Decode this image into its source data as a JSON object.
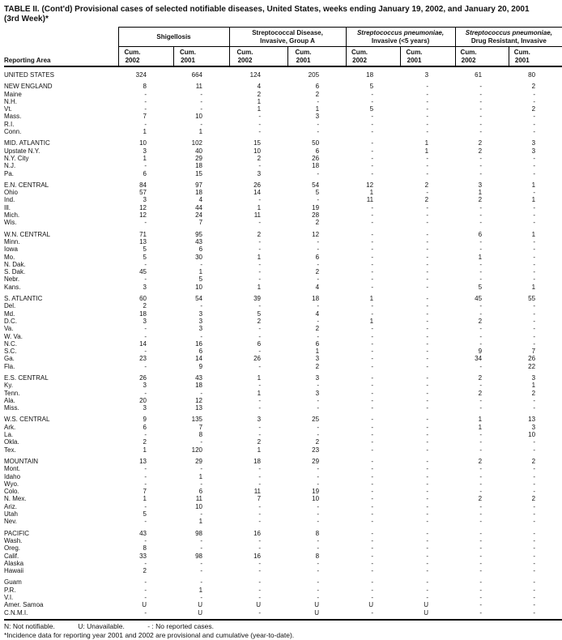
{
  "title": {
    "line1": "TABLE II. (Cont'd) Provisional cases of selected notifiable diseases, United States, weeks ending January 19, 2002, and January 20, 2001",
    "line2": "(3rd Week)*"
  },
  "table": {
    "reporting_area_label": "Reporting Area",
    "groups": [
      {
        "line1": "",
        "line2": "Shigellosis"
      },
      {
        "line1": "Streptococcal Disease,",
        "line2": "Invasive, Group A"
      },
      {
        "line1": "Streptococcus pneumoniae,",
        "line2": "Invasive (<5 years)"
      },
      {
        "line1": "Streptococcus pneumoniae,",
        "line2": "Drug Resistant, Invasive"
      }
    ],
    "subcolumns": [
      {
        "label": "Cum.",
        "year": "2002"
      },
      {
        "label": "Cum.",
        "year": "2001"
      },
      {
        "label": "Cum.",
        "year": "2002"
      },
      {
        "label": "Cum.",
        "year": "2001"
      },
      {
        "label": "Cum.",
        "year": "2002"
      },
      {
        "label": "Cum.",
        "year": "2001"
      },
      {
        "label": "Cum.",
        "year": "2002"
      },
      {
        "label": "Cum.",
        "year": "2001"
      }
    ],
    "sections": [
      {
        "rows": [
          {
            "area": "UNITED STATES",
            "values": [
              "324",
              "664",
              "124",
              "205",
              "18",
              "3",
              "61",
              "80"
            ]
          }
        ]
      },
      {
        "rows": [
          {
            "area": "NEW ENGLAND",
            "values": [
              "8",
              "11",
              "4",
              "6",
              "5",
              "-",
              "-",
              "2"
            ]
          },
          {
            "area": "Maine",
            "values": [
              "-",
              "-",
              "2",
              "2",
              "-",
              "-",
              "-",
              "-"
            ]
          },
          {
            "area": "N.H.",
            "values": [
              "-",
              "-",
              "1",
              "-",
              "-",
              "-",
              "-",
              "-"
            ]
          },
          {
            "area": "Vt.",
            "values": [
              "-",
              "-",
              "1",
              "1",
              "5",
              "-",
              "-",
              "2"
            ]
          },
          {
            "area": "Mass.",
            "values": [
              "7",
              "10",
              "-",
              "3",
              "-",
              "-",
              "-",
              "-"
            ]
          },
          {
            "area": "R.I.",
            "values": [
              "-",
              "-",
              "-",
              "-",
              "-",
              "-",
              "-",
              "-"
            ]
          },
          {
            "area": "Conn.",
            "values": [
              "1",
              "1",
              "-",
              "-",
              "-",
              "-",
              "-",
              "-"
            ]
          }
        ]
      },
      {
        "rows": [
          {
            "area": "MID. ATLANTIC",
            "values": [
              "10",
              "102",
              "15",
              "50",
              "-",
              "1",
              "2",
              "3"
            ]
          },
          {
            "area": "Upstate N.Y.",
            "values": [
              "3",
              "40",
              "10",
              "6",
              "-",
              "1",
              "2",
              "3"
            ]
          },
          {
            "area": "N.Y. City",
            "values": [
              "1",
              "29",
              "2",
              "26",
              "-",
              "-",
              "-",
              "-"
            ]
          },
          {
            "area": "N.J.",
            "values": [
              "-",
              "18",
              "-",
              "18",
              "-",
              "-",
              "-",
              "-"
            ]
          },
          {
            "area": "Pa.",
            "values": [
              "6",
              "15",
              "3",
              "-",
              "-",
              "-",
              "-",
              "-"
            ]
          }
        ]
      },
      {
        "rows": [
          {
            "area": "E.N. CENTRAL",
            "values": [
              "84",
              "97",
              "26",
              "54",
              "12",
              "2",
              "3",
              "1"
            ]
          },
          {
            "area": "Ohio",
            "values": [
              "57",
              "18",
              "14",
              "5",
              "1",
              "-",
              "1",
              "-"
            ]
          },
          {
            "area": "Ind.",
            "values": [
              "3",
              "4",
              "-",
              "-",
              "11",
              "2",
              "2",
              "1"
            ]
          },
          {
            "area": "Ill.",
            "values": [
              "12",
              "44",
              "1",
              "19",
              "-",
              "-",
              "-",
              "-"
            ]
          },
          {
            "area": "Mich.",
            "values": [
              "12",
              "24",
              "11",
              "28",
              "-",
              "-",
              "-",
              "-"
            ]
          },
          {
            "area": "Wis.",
            "values": [
              "-",
              "7",
              "-",
              "2",
              "-",
              "-",
              "-",
              "-"
            ]
          }
        ]
      },
      {
        "rows": [
          {
            "area": "W.N. CENTRAL",
            "values": [
              "71",
              "95",
              "2",
              "12",
              "-",
              "-",
              "6",
              "1"
            ]
          },
          {
            "area": "Minn.",
            "values": [
              "13",
              "43",
              "-",
              "-",
              "-",
              "-",
              "-",
              "-"
            ]
          },
          {
            "area": "Iowa",
            "values": [
              "5",
              "6",
              "-",
              "-",
              "-",
              "-",
              "-",
              "-"
            ]
          },
          {
            "area": "Mo.",
            "values": [
              "5",
              "30",
              "1",
              "6",
              "-",
              "-",
              "1",
              "-"
            ]
          },
          {
            "area": "N. Dak.",
            "values": [
              "-",
              "-",
              "-",
              "-",
              "-",
              "-",
              "-",
              "-"
            ]
          },
          {
            "area": "S. Dak.",
            "values": [
              "45",
              "1",
              "-",
              "2",
              "-",
              "-",
              "-",
              "-"
            ]
          },
          {
            "area": "Nebr.",
            "values": [
              "-",
              "5",
              "-",
              "-",
              "-",
              "-",
              "-",
              "-"
            ]
          },
          {
            "area": "Kans.",
            "values": [
              "3",
              "10",
              "1",
              "4",
              "-",
              "-",
              "5",
              "1"
            ]
          }
        ]
      },
      {
        "rows": [
          {
            "area": "S. ATLANTIC",
            "values": [
              "60",
              "54",
              "39",
              "18",
              "1",
              "-",
              "45",
              "55"
            ]
          },
          {
            "area": "Del.",
            "values": [
              "2",
              "-",
              "-",
              "-",
              "-",
              "-",
              "-",
              "-"
            ]
          },
          {
            "area": "Md.",
            "values": [
              "18",
              "3",
              "5",
              "4",
              "-",
              "-",
              "-",
              "-"
            ]
          },
          {
            "area": "D.C.",
            "values": [
              "3",
              "3",
              "2",
              "-",
              "1",
              "-",
              "2",
              "-"
            ]
          },
          {
            "area": "Va.",
            "values": [
              "-",
              "3",
              "-",
              "2",
              "-",
              "-",
              "-",
              "-"
            ]
          },
          {
            "area": "W. Va.",
            "values": [
              "-",
              "-",
              "-",
              "-",
              "-",
              "-",
              "-",
              "-"
            ]
          },
          {
            "area": "N.C.",
            "values": [
              "14",
              "16",
              "6",
              "6",
              "-",
              "-",
              "-",
              "-"
            ]
          },
          {
            "area": "S.C.",
            "values": [
              "-",
              "6",
              "-",
              "1",
              "-",
              "-",
              "9",
              "7"
            ]
          },
          {
            "area": "Ga.",
            "values": [
              "23",
              "14",
              "26",
              "3",
              "-",
              "-",
              "34",
              "26"
            ]
          },
          {
            "area": "Fla.",
            "values": [
              "-",
              "9",
              "-",
              "2",
              "-",
              "-",
              "-",
              "22"
            ]
          }
        ]
      },
      {
        "rows": [
          {
            "area": "E.S. CENTRAL",
            "values": [
              "26",
              "43",
              "1",
              "3",
              "-",
              "-",
              "2",
              "3"
            ]
          },
          {
            "area": "Ky.",
            "values": [
              "3",
              "18",
              "-",
              "-",
              "-",
              "-",
              "-",
              "1"
            ]
          },
          {
            "area": "Tenn.",
            "values": [
              "-",
              "-",
              "1",
              "3",
              "-",
              "-",
              "2",
              "2"
            ]
          },
          {
            "area": "Ala.",
            "values": [
              "20",
              "12",
              "-",
              "-",
              "-",
              "-",
              "-",
              "-"
            ]
          },
          {
            "area": "Miss.",
            "values": [
              "3",
              "13",
              "-",
              "-",
              "-",
              "-",
              "-",
              "-"
            ]
          }
        ]
      },
      {
        "rows": [
          {
            "area": "W.S. CENTRAL",
            "values": [
              "9",
              "135",
              "3",
              "25",
              "-",
              "-",
              "1",
              "13"
            ]
          },
          {
            "area": "Ark.",
            "values": [
              "6",
              "7",
              "-",
              "-",
              "-",
              "-",
              "1",
              "3"
            ]
          },
          {
            "area": "La.",
            "values": [
              "-",
              "8",
              "-",
              "-",
              "-",
              "-",
              "-",
              "10"
            ]
          },
          {
            "area": "Okla.",
            "values": [
              "2",
              "-",
              "2",
              "2",
              "-",
              "-",
              "-",
              "-"
            ]
          },
          {
            "area": "Tex.",
            "values": [
              "1",
              "120",
              "1",
              "23",
              "-",
              "-",
              "-",
              "-"
            ]
          }
        ]
      },
      {
        "rows": [
          {
            "area": "MOUNTAIN",
            "values": [
              "13",
              "29",
              "18",
              "29",
              "-",
              "-",
              "2",
              "2"
            ]
          },
          {
            "area": "Mont.",
            "values": [
              "-",
              "-",
              "-",
              "-",
              "-",
              "-",
              "-",
              "-"
            ]
          },
          {
            "area": "Idaho",
            "values": [
              "-",
              "1",
              "-",
              "-",
              "-",
              "-",
              "-",
              "-"
            ]
          },
          {
            "area": "Wyo.",
            "values": [
              "-",
              "-",
              "-",
              "-",
              "-",
              "-",
              "-",
              "-"
            ]
          },
          {
            "area": "Colo.",
            "values": [
              "7",
              "6",
              "11",
              "19",
              "-",
              "-",
              "-",
              "-"
            ]
          },
          {
            "area": "N. Mex.",
            "values": [
              "1",
              "11",
              "7",
              "10",
              "-",
              "-",
              "2",
              "2"
            ]
          },
          {
            "area": "Ariz.",
            "values": [
              "-",
              "10",
              "-",
              "-",
              "-",
              "-",
              "-",
              "-"
            ]
          },
          {
            "area": "Utah",
            "values": [
              "5",
              "-",
              "-",
              "-",
              "-",
              "-",
              "-",
              "-"
            ]
          },
          {
            "area": "Nev.",
            "values": [
              "-",
              "1",
              "-",
              "-",
              "-",
              "-",
              "-",
              "-"
            ]
          }
        ]
      },
      {
        "rows": [
          {
            "area": "PACIFIC",
            "values": [
              "43",
              "98",
              "16",
              "8",
              "-",
              "-",
              "-",
              "-"
            ]
          },
          {
            "area": "Wash.",
            "values": [
              "-",
              "-",
              "-",
              "-",
              "-",
              "-",
              "-",
              "-"
            ]
          },
          {
            "area": "Oreg.",
            "values": [
              "8",
              "-",
              "-",
              "-",
              "-",
              "-",
              "-",
              "-"
            ]
          },
          {
            "area": "Calif.",
            "values": [
              "33",
              "98",
              "16",
              "8",
              "-",
              "-",
              "-",
              "-"
            ]
          },
          {
            "area": "Alaska",
            "values": [
              "-",
              "-",
              "-",
              "-",
              "-",
              "-",
              "-",
              "-"
            ]
          },
          {
            "area": "Hawaii",
            "values": [
              "2",
              "-",
              "-",
              "-",
              "-",
              "-",
              "-",
              "-"
            ]
          }
        ]
      },
      {
        "rows": [
          {
            "area": "Guam",
            "values": [
              "-",
              "-",
              "-",
              "-",
              "-",
              "-",
              "-",
              "-"
            ]
          },
          {
            "area": "P.R.",
            "values": [
              "-",
              "1",
              "-",
              "-",
              "-",
              "-",
              "-",
              "-"
            ]
          },
          {
            "area": "V.I.",
            "values": [
              "-",
              "-",
              "-",
              "-",
              "-",
              "-",
              "-",
              "-"
            ]
          },
          {
            "area": "Amer. Samoa",
            "values": [
              "U",
              "U",
              "U",
              "U",
              "U",
              "U",
              "-",
              "-"
            ]
          },
          {
            "area": "C.N.M.I.",
            "values": [
              "-",
              "U",
              "-",
              "U",
              "-",
              "U",
              "-",
              "-"
            ]
          }
        ]
      }
    ]
  },
  "footnotes": {
    "legend": [
      "N: Not notifiable.",
      "U: Unavailable.",
      "- : No reported cases."
    ],
    "note": "*Incidence data for reporting year 2001 and 2002 are provisional and cumulative (year-to-date)."
  },
  "colors": {
    "text": "#111111",
    "rule": "#000000",
    "background": "#ffffff"
  }
}
